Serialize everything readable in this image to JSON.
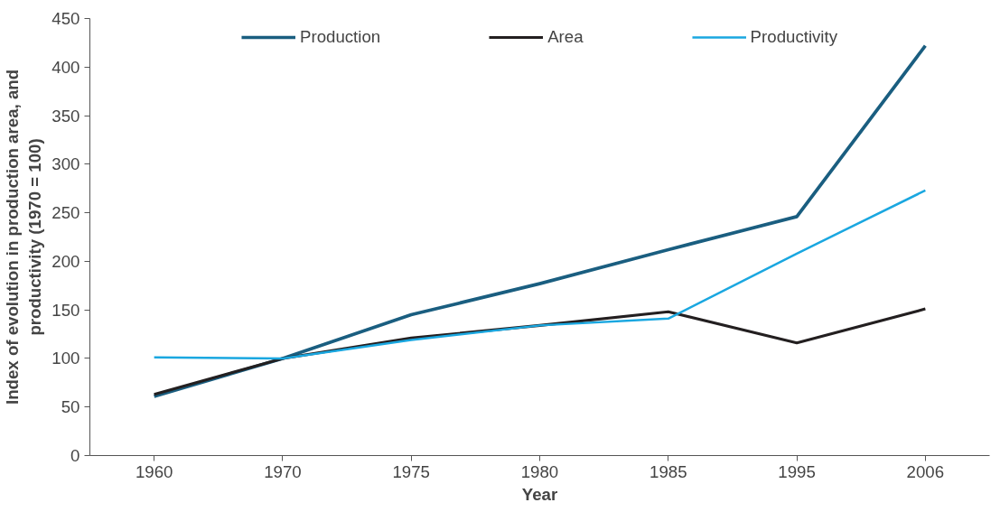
{
  "chart_data": {
    "type": "line",
    "xlabel": "Year",
    "ylabel": "Index of evolution in production area, and productivity (1970 = 100)",
    "categories": [
      "1960",
      "1970",
      "1975",
      "1980",
      "1985",
      "1995",
      "2006"
    ],
    "series": [
      {
        "name": "Production",
        "color": "#1a5e80",
        "values": [
          61,
          100,
          145,
          177,
          212,
          246,
          422
        ]
      },
      {
        "name": "Area",
        "color": "#231f20",
        "values": [
          63,
          100,
          121,
          134,
          148,
          116,
          151
        ]
      },
      {
        "name": "Productivity",
        "color": "#1aa7e0",
        "values": [
          101,
          100,
          119,
          134,
          141,
          208,
          273
        ]
      }
    ],
    "ylim": [
      0,
      450
    ],
    "yticks": [
      0,
      50,
      100,
      150,
      200,
      250,
      300,
      350,
      400,
      450
    ],
    "grid": false,
    "legend": "top",
    "marker": "none",
    "line_style": "solid"
  }
}
